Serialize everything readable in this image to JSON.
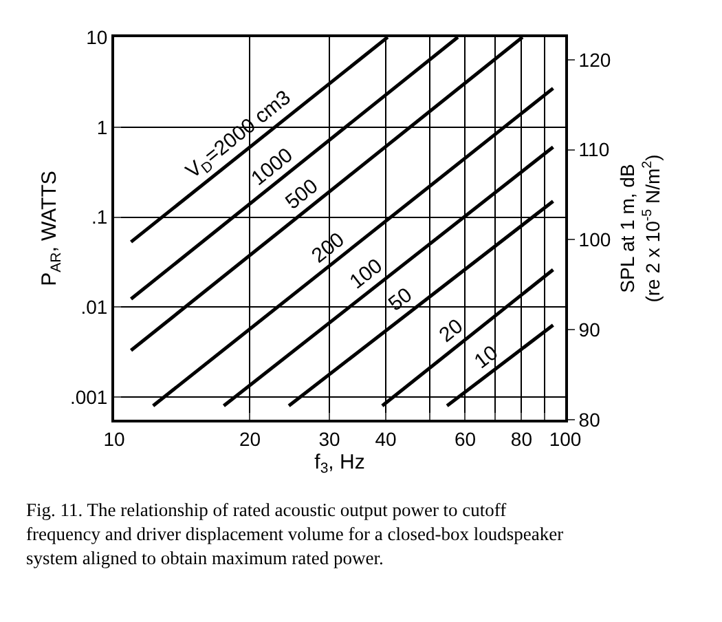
{
  "chart_data": {
    "type": "line",
    "xlabel": "f$_{3}$, Hz",
    "ylabel": "P$_{AR}$, WATTS",
    "y2label": "SPL at 1 m, dB\n(re 2 x 10$^{-5}$ N/m$^{2}$)",
    "log": "xy",
    "grid": true,
    "legend": false,
    "marker": "none",
    "line_style": "solid",
    "xlim": [
      10,
      100
    ],
    "xticks": [
      10,
      20,
      30,
      40,
      {
        "value": 50,
        "label": null
      },
      60,
      {
        "value": 70,
        "label": null
      },
      80,
      {
        "value": 90,
        "label": null
      },
      100
    ],
    "ylim": [
      0.00056,
      10
    ],
    "yticks": [
      10,
      1,
      {
        "value": 0.1,
        "label": ".1"
      },
      {
        "value": 0.01,
        "label": ".01"
      },
      {
        "value": 0.001,
        "label": ".001"
      }
    ],
    "y2lim": [
      80,
      122.5
    ],
    "y2ticks": [
      80,
      90,
      100,
      110,
      120
    ],
    "series": [
      {
        "name": "V$_{D}$=2000 cm3",
        "color": "#000000",
        "x": [
          10.9,
          40.4
        ],
        "values": [
          0.053,
          10
        ]
      },
      {
        "name": "1000",
        "color": "#000000",
        "x": [
          10.9,
          57.8
        ],
        "values": [
          0.0123,
          10
        ]
      },
      {
        "name": "500",
        "color": "#000000",
        "x": [
          10.9,
          80.4
        ],
        "values": [
          0.0033,
          10
        ]
      },
      {
        "name": "200",
        "color": "#000000",
        "x": [
          12.2,
          94
        ],
        "values": [
          0.0008,
          2.7
        ]
      },
      {
        "name": "100",
        "color": "#000000",
        "x": [
          17.5,
          94
        ],
        "values": [
          0.0008,
          0.6
        ]
      },
      {
        "name": "50",
        "color": "#000000",
        "x": [
          24.4,
          94
        ],
        "values": [
          0.0008,
          0.15
        ]
      },
      {
        "name": "20",
        "color": "#000000",
        "x": [
          39.3,
          94
        ],
        "values": [
          0.0008,
          0.026
        ]
      },
      {
        "name": "10",
        "color": "#000000",
        "x": [
          54.7,
          94
        ],
        "values": [
          0.0008,
          0.0063
        ]
      }
    ],
    "annotations": [
      "Fig. 11. The relationship of rated acoustic output power to cutoff frequency and driver displacement volume for a closed-box loudspeaker system aligned to obtain maximum rated power."
    ]
  }
}
